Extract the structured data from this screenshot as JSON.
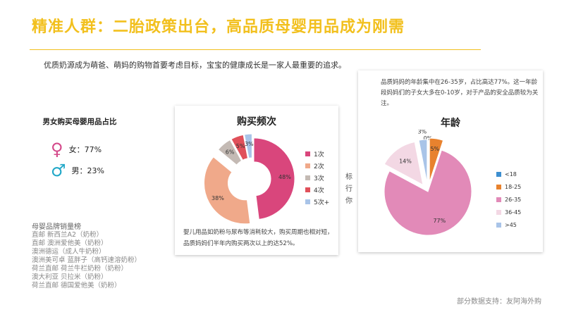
{
  "title": "精准人群：二胎政策出台，高品质母婴用品成为刚需",
  "subtitle": "优质奶源成为萌爸、萌妈的购物首要考虑目标，宝宝的健康成长是一家人最重要的追求。",
  "gender": {
    "title": "男女购买母婴用品占比",
    "female_symbol": "♀",
    "female_label": "女：77%",
    "male_symbol": "♂",
    "male_label": "男：23%"
  },
  "brands": {
    "title": "母婴品牌销量榜",
    "items": [
      "直邮 新西兰A2（奶粉）",
      "直邮 澳洲爱他美（奶粉）",
      "澳洲德运（成人牛奶粉）",
      "澳洲美可卓 蓝胖子（高钙速溶奶粉）",
      "荷兰直邮 荷兰牛栏奶粉（奶粉）",
      "澳大利亚 贝拉米（奶粉）",
      "荷兰直邮 德国爱他美（奶粉）"
    ]
  },
  "peek_text": [
    "标",
    "行",
    "你"
  ],
  "source": "部分数据支持：友阿海外购",
  "chart_data": [
    {
      "type": "pie",
      "variant": "donut-exploded",
      "title": "购买频次",
      "categories": [
        "1次",
        "2次",
        "3次",
        "4次",
        "5次+"
      ],
      "values": [
        48,
        38,
        6,
        5,
        3
      ],
      "data_labels": [
        "48%",
        "38%",
        "6%",
        "5%",
        "3%"
      ],
      "colors": [
        "#d9467c",
        "#f0a98a",
        "#c4bab4",
        "#e0505a",
        "#a9c4e8"
      ],
      "legend_position": "right",
      "note": "婴儿用品如奶粉与尿布等消耗较大，购买周期也相对短，品质妈妈们半年内购买两次以上的达52%。"
    },
    {
      "type": "pie",
      "variant": "exploded",
      "title": "年龄",
      "categories": [
        "<18",
        "18-25",
        "26-35",
        "36-45",
        ">45"
      ],
      "values": [
        0,
        5,
        77,
        14,
        3
      ],
      "data_labels": [
        "0%",
        "5%",
        "77%",
        "14%",
        "3%"
      ],
      "colors": [
        "#3d8fd0",
        "#e8822e",
        "#e28ab8",
        "#f3d8e4",
        "#a9c4e8"
      ],
      "legend_position": "right",
      "note": "品质妈妈的年龄集中在26-35岁，占比高达77%。这一年龄段妈妈们的子女大多在0-10岁，对于产品的安全品质较为关注。"
    }
  ]
}
